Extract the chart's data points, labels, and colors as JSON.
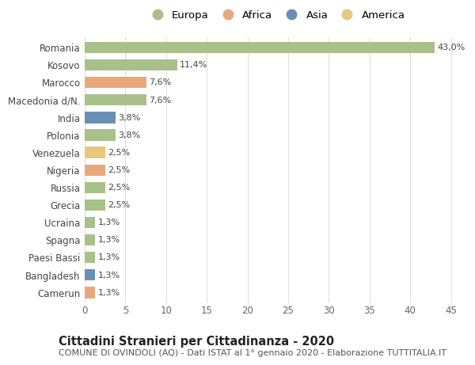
{
  "countries": [
    "Romania",
    "Kosovo",
    "Marocco",
    "Macedonia d/N.",
    "India",
    "Polonia",
    "Venezuela",
    "Nigeria",
    "Russia",
    "Grecia",
    "Ucraina",
    "Spagna",
    "Paesi Bassi",
    "Bangladesh",
    "Camerun"
  ],
  "values": [
    43.0,
    11.4,
    7.6,
    7.6,
    3.8,
    3.8,
    2.5,
    2.5,
    2.5,
    2.5,
    1.3,
    1.3,
    1.3,
    1.3,
    1.3
  ],
  "labels": [
    "43,0%",
    "11,4%",
    "7,6%",
    "7,6%",
    "3,8%",
    "3,8%",
    "2,5%",
    "2,5%",
    "2,5%",
    "2,5%",
    "1,3%",
    "1,3%",
    "1,3%",
    "1,3%",
    "1,3%"
  ],
  "continents": [
    "Europa",
    "Europa",
    "Africa",
    "Europa",
    "Asia",
    "Europa",
    "America",
    "Africa",
    "Europa",
    "Europa",
    "Europa",
    "Europa",
    "Europa",
    "Asia",
    "Africa"
  ],
  "continent_colors": {
    "Europa": "#a8c08a",
    "Africa": "#e8a87c",
    "Asia": "#6a8fb5",
    "America": "#e8c87c"
  },
  "legend_order": [
    "Europa",
    "Africa",
    "Asia",
    "America"
  ],
  "title_bold": "Cittadini Stranieri per Cittadinanza - 2020",
  "subtitle": "COMUNE DI OVINDOLI (AQ) - Dati ISTAT al 1° gennaio 2020 - Elaborazione TUTTITALIA.IT",
  "xlim": [
    0,
    47
  ],
  "xticks": [
    0,
    5,
    10,
    15,
    20,
    25,
    30,
    35,
    40,
    45
  ],
  "background_color": "#ffffff",
  "grid_color": "#dddddd",
  "bar_height": 0.65,
  "label_fontsize": 8.0,
  "tick_fontsize": 8.5,
  "ytick_fontsize": 8.5,
  "title_fontsize": 10.5,
  "subtitle_fontsize": 8.0,
  "legend_fontsize": 9.5
}
